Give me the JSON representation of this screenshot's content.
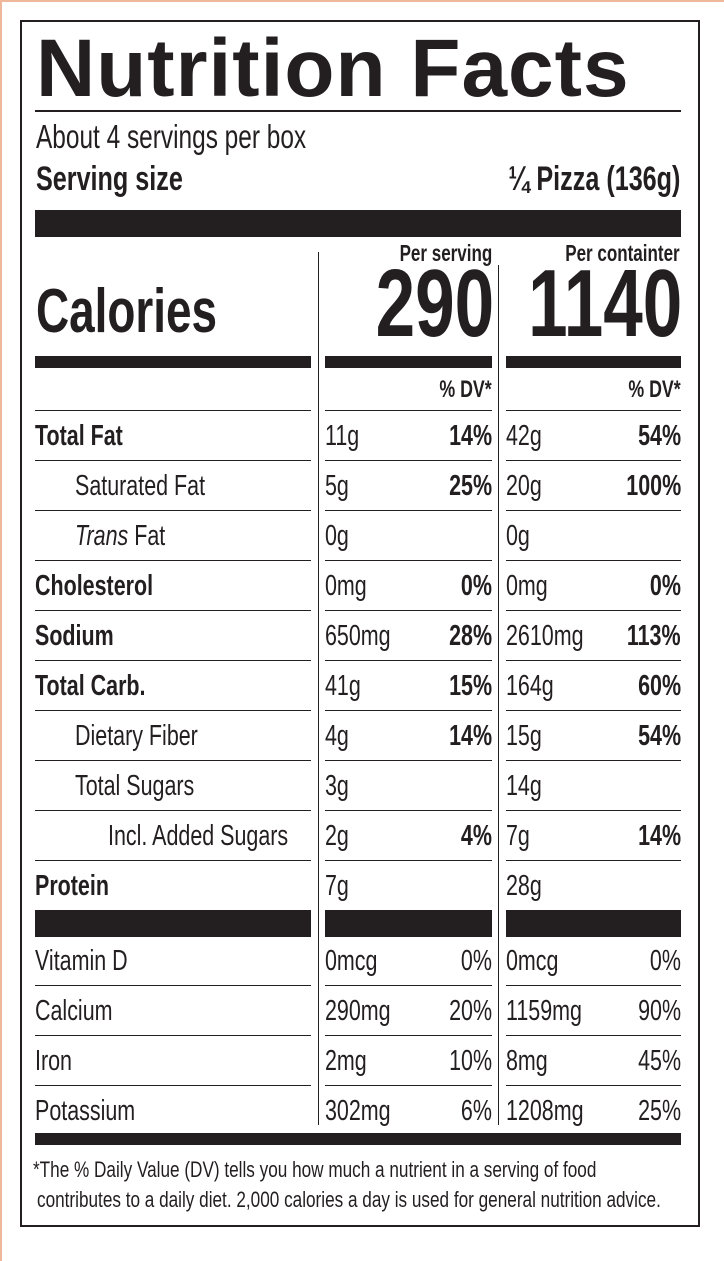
{
  "title": "Nutrition Facts",
  "servings_per_container": "About 4 servings per box",
  "serving_size_label": "Serving size",
  "serving_size_value": "¼ Pizza (136g)",
  "calories": {
    "label": "Calories",
    "per_serving_header": "Per serving",
    "per_container_header": "Per containter",
    "per_serving": "290",
    "per_container": "1140"
  },
  "dv_header": "% DV*",
  "nutrients": [
    {
      "label": "Total Fat",
      "bold": true,
      "indent": 0,
      "serving_amount": "11g",
      "serving_dv": "14%",
      "container_amount": "42g",
      "container_dv": "54%"
    },
    {
      "label": "Saturated Fat",
      "bold": false,
      "indent": 1,
      "serving_amount": "5g",
      "serving_dv": "25%",
      "container_amount": "20g",
      "container_dv": "100%"
    },
    {
      "label": "Trans Fat",
      "bold": false,
      "indent": 1,
      "serving_amount": "0g",
      "serving_dv": "",
      "container_amount": "0g",
      "container_dv": ""
    },
    {
      "label": "Cholesterol",
      "bold": true,
      "indent": 0,
      "serving_amount": "0mg",
      "serving_dv": "0%",
      "container_amount": "0mg",
      "container_dv": "0%"
    },
    {
      "label": "Sodium",
      "bold": true,
      "indent": 0,
      "serving_amount": "650mg",
      "serving_dv": "28%",
      "container_amount": "2610mg",
      "container_dv": "113%"
    },
    {
      "label": "Total Carb.",
      "bold": true,
      "indent": 0,
      "serving_amount": "41g",
      "serving_dv": "15%",
      "container_amount": "164g",
      "container_dv": "60%"
    },
    {
      "label": "Dietary Fiber",
      "bold": false,
      "indent": 1,
      "serving_amount": "4g",
      "serving_dv": "14%",
      "container_amount": "15g",
      "container_dv": "54%"
    },
    {
      "label": "Total Sugars",
      "bold": false,
      "indent": 1,
      "serving_amount": "3g",
      "serving_dv": "",
      "container_amount": "14g",
      "container_dv": ""
    },
    {
      "label": "Incl. Added Sugars",
      "bold": false,
      "indent": 2,
      "serving_amount": "2g",
      "serving_dv": "4%",
      "container_amount": "7g",
      "container_dv": "14%"
    },
    {
      "label": "Protein",
      "bold": true,
      "indent": 0,
      "serving_amount": "7g",
      "serving_dv": "",
      "container_amount": "28g",
      "container_dv": ""
    }
  ],
  "vitamins": [
    {
      "label": "Vitamin D",
      "serving_amount": "0mcg",
      "serving_dv": "0%",
      "container_amount": "0mcg",
      "container_dv": "0%"
    },
    {
      "label": "Calcium",
      "serving_amount": "290mg",
      "serving_dv": "20%",
      "container_amount": "1159mg",
      "container_dv": "90%"
    },
    {
      "label": "Iron",
      "serving_amount": "2mg",
      "serving_dv": "10%",
      "container_amount": "8mg",
      "container_dv": "45%"
    },
    {
      "label": "Potassium",
      "serving_amount": "302mg",
      "serving_dv": "6%",
      "container_amount": "1208mg",
      "container_dv": "25%"
    }
  ],
  "footnote": [
    "*The % Daily Value (DV) tells you how much a nutrient in a serving of food",
    "contributes to a daily diet. 2,000 calories a day is used for general nutrition advice."
  ],
  "colors": {
    "ink": "#231f20",
    "edge": "#f0b89a"
  }
}
